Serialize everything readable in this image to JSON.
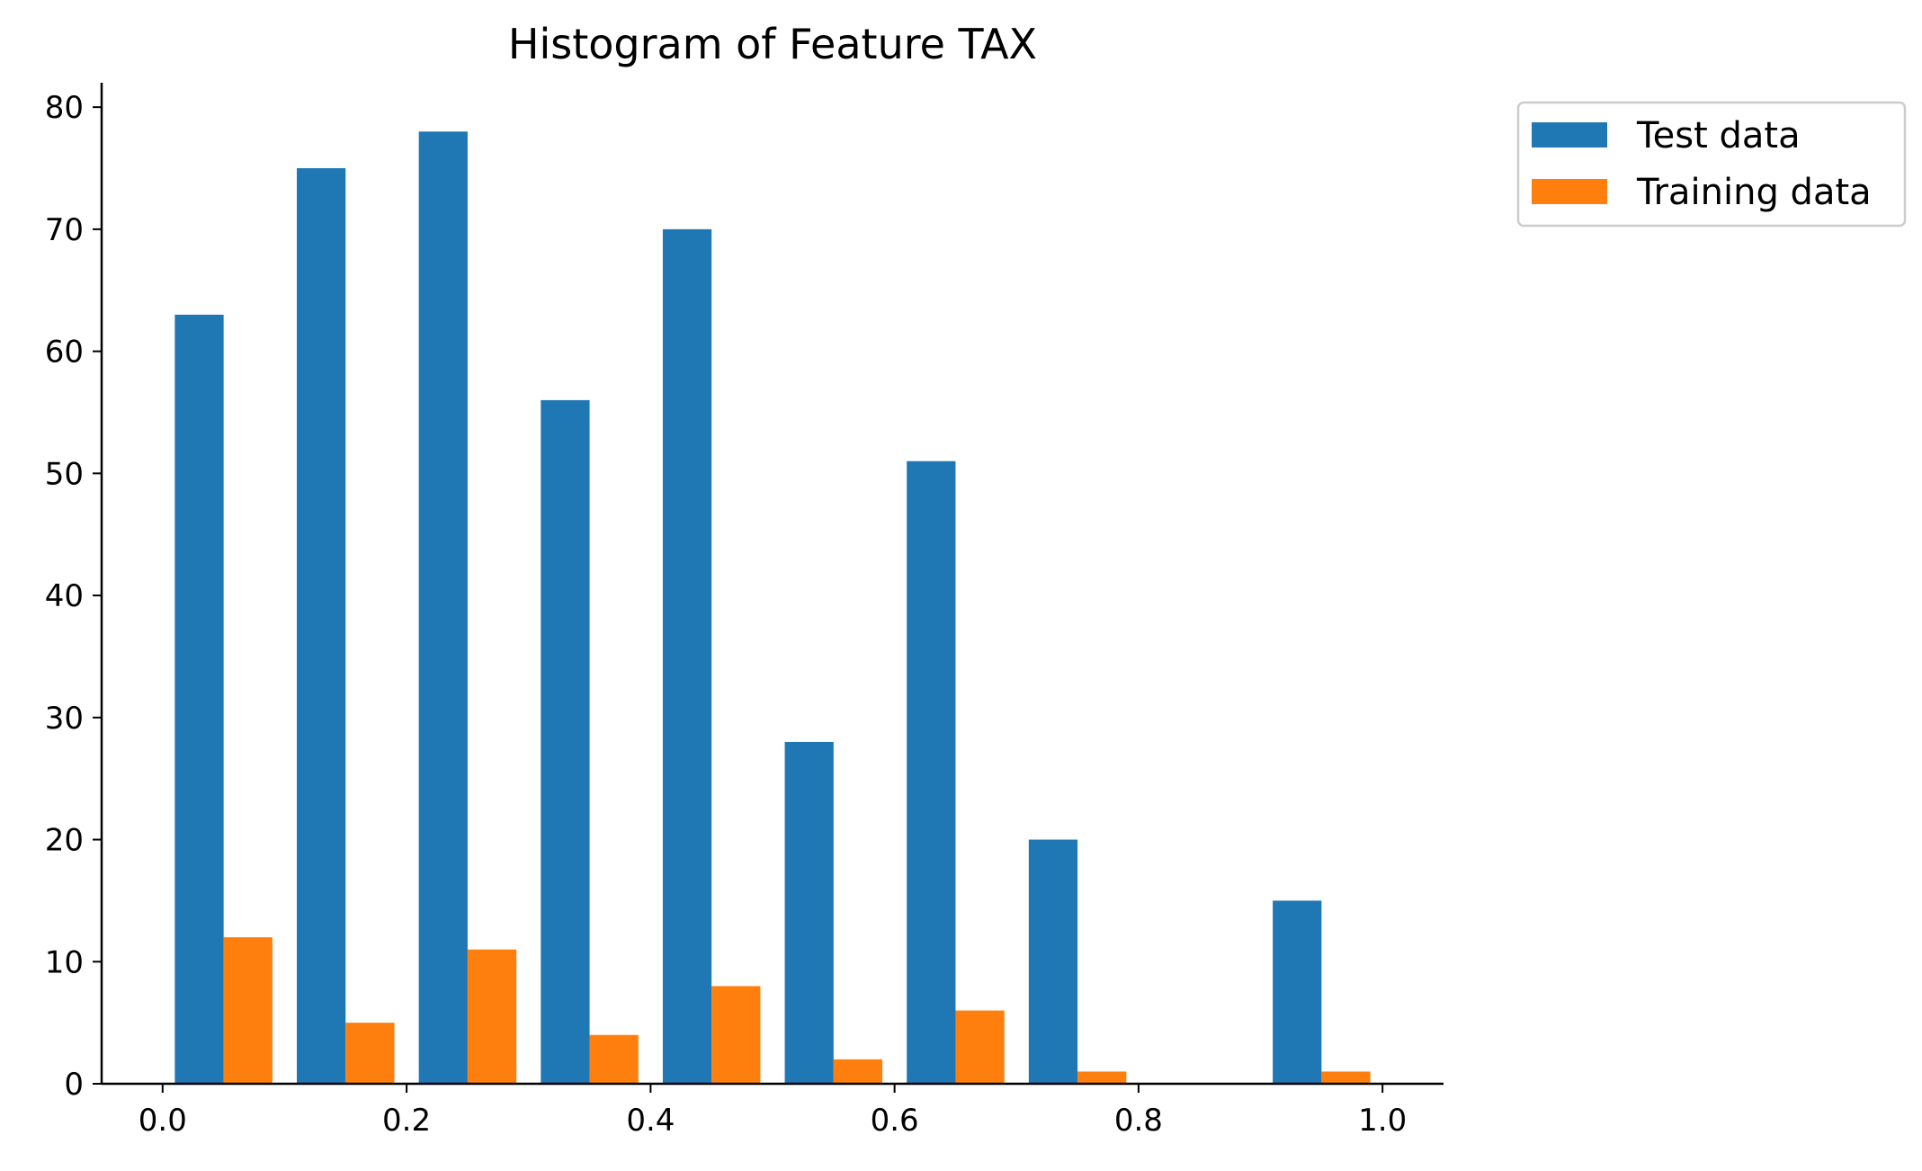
{
  "chart_data": {
    "type": "bar",
    "title": "Histogram of Feature TAX",
    "xlabel": "",
    "ylabel": "",
    "xlim": [
      -0.05,
      1.05
    ],
    "ylim": [
      0,
      82
    ],
    "xticks": [
      "0.0",
      "0.2",
      "0.4",
      "0.6",
      "0.8",
      "1.0"
    ],
    "xtick_values": [
      0.0,
      0.2,
      0.4,
      0.6,
      0.8,
      1.0
    ],
    "yticks": [
      "0",
      "10",
      "20",
      "30",
      "40",
      "50",
      "60",
      "70",
      "80"
    ],
    "ytick_values": [
      0,
      10,
      20,
      30,
      40,
      50,
      60,
      70,
      80
    ],
    "bin_edges": [
      0.0,
      0.1,
      0.2,
      0.3,
      0.4,
      0.5,
      0.6,
      0.7,
      0.8,
      0.9,
      1.0
    ],
    "series": [
      {
        "name": "Test data",
        "color": "#1f77b4",
        "values": [
          63,
          75,
          78,
          56,
          70,
          28,
          51,
          20,
          0,
          15
        ]
      },
      {
        "name": "Training data",
        "color": "#ff7f0e",
        "values": [
          12,
          5,
          11,
          4,
          8,
          2,
          6,
          1,
          0,
          1
        ]
      }
    ],
    "legend_position": "top-right, outside plot",
    "grid": false
  }
}
